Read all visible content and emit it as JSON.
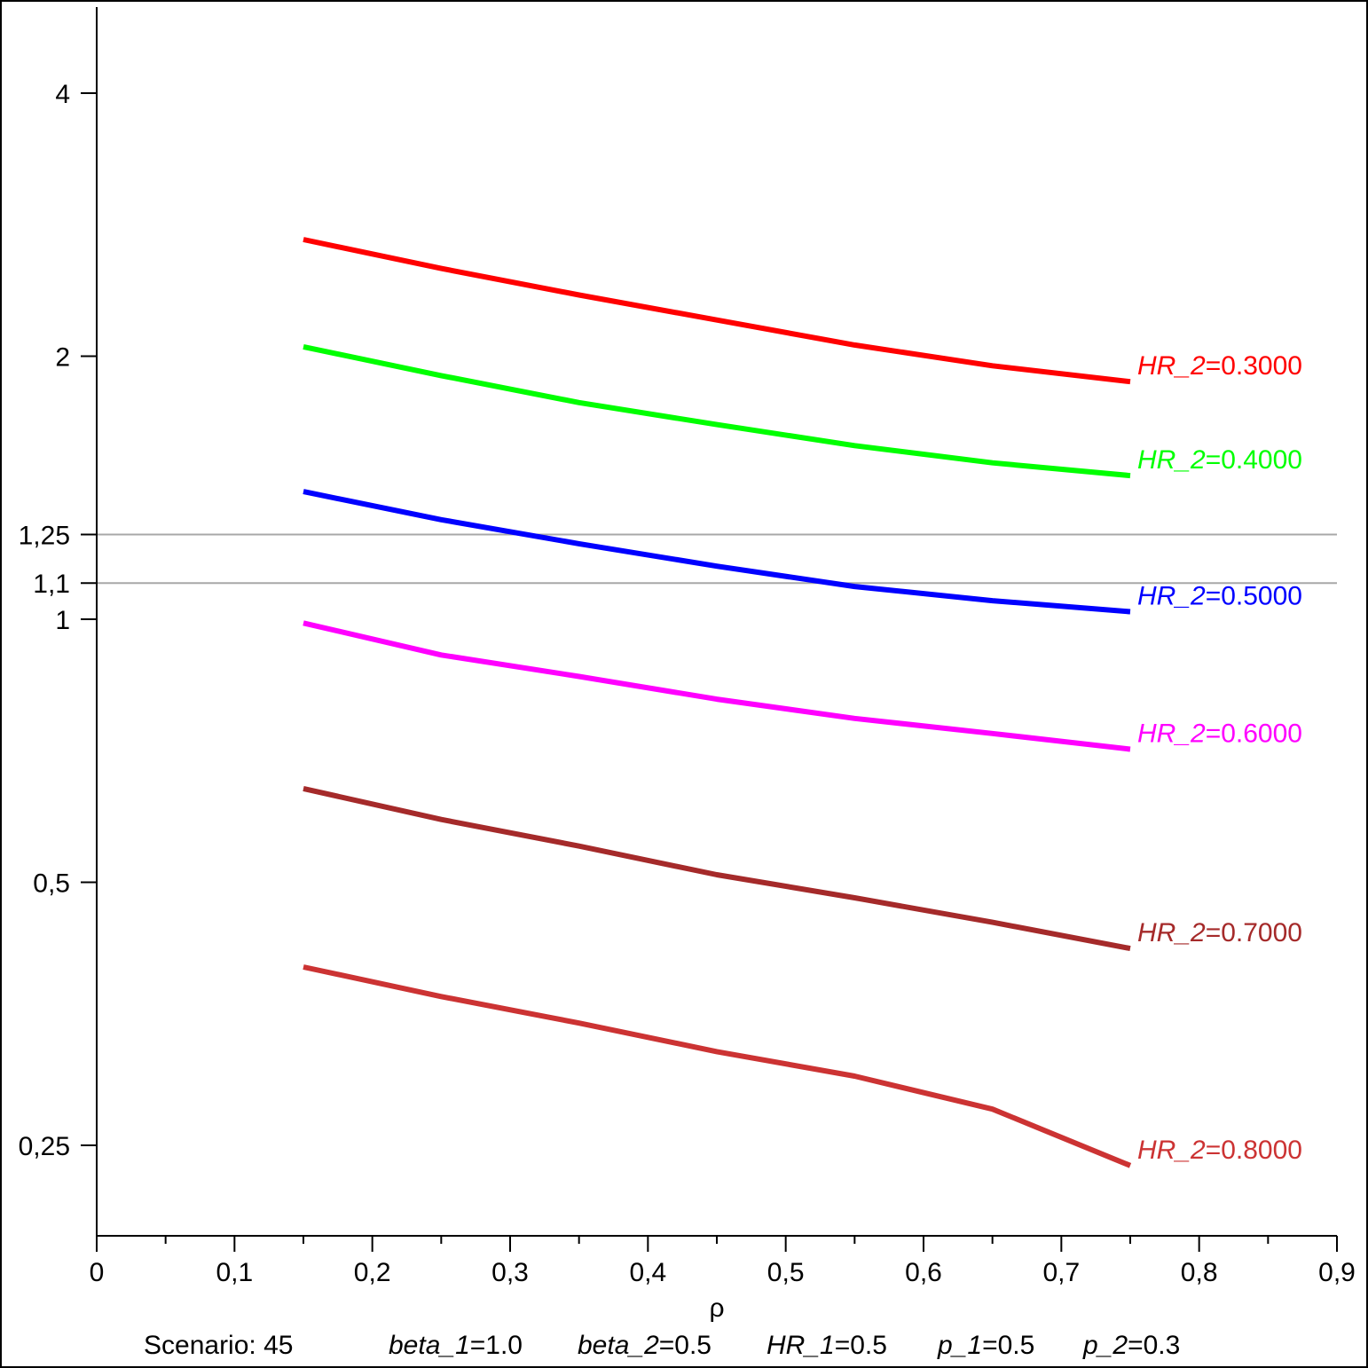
{
  "chart_data": {
    "type": "line",
    "xlabel": "ρ",
    "xlim": [
      0,
      0.9
    ],
    "ylim": [
      0.2,
      5
    ],
    "yscale": "log",
    "grid": false,
    "x_ticks": [
      {
        "v": 0,
        "label": "0"
      },
      {
        "v": 0.1,
        "label": "0,1"
      },
      {
        "v": 0.2,
        "label": "0,2"
      },
      {
        "v": 0.3,
        "label": "0,3"
      },
      {
        "v": 0.4,
        "label": "0,4"
      },
      {
        "v": 0.5,
        "label": "0,5"
      },
      {
        "v": 0.6,
        "label": "0,6"
      },
      {
        "v": 0.7,
        "label": "0,7"
      },
      {
        "v": 0.8,
        "label": "0,8"
      },
      {
        "v": 0.9,
        "label": "0,9"
      }
    ],
    "y_ticks": [
      {
        "v": 4,
        "label": "4"
      },
      {
        "v": 2,
        "label": "2"
      },
      {
        "v": 1.25,
        "label": "1,25"
      },
      {
        "v": 1.1,
        "label": "1,1"
      },
      {
        "v": 1,
        "label": "1"
      },
      {
        "v": 0.5,
        "label": "0,5"
      },
      {
        "v": 0.25,
        "label": "0,25"
      }
    ],
    "reference_lines": [
      1.25,
      1.1
    ],
    "x": [
      0.15,
      0.25,
      0.35,
      0.45,
      0.55,
      0.65,
      0.75
    ],
    "series": [
      {
        "name": "0.3000",
        "color": "#ff0000",
        "values": [
          2.72,
          2.52,
          2.35,
          2.2,
          2.06,
          1.95,
          1.87
        ]
      },
      {
        "name": "0.4000",
        "color": "#00ff00",
        "values": [
          2.05,
          1.9,
          1.77,
          1.67,
          1.58,
          1.51,
          1.46
        ]
      },
      {
        "name": "0.5000",
        "color": "#0000ff",
        "values": [
          1.4,
          1.3,
          1.22,
          1.15,
          1.09,
          1.05,
          1.02
        ]
      },
      {
        "name": "0.6000",
        "color": "#ff00ff",
        "values": [
          0.99,
          0.91,
          0.86,
          0.81,
          0.77,
          0.74,
          0.71
        ]
      },
      {
        "name": "0.7000",
        "color": "#a52a2a",
        "values": [
          0.64,
          0.59,
          0.55,
          0.51,
          0.48,
          0.45,
          0.42
        ]
      },
      {
        "name": "0.8000",
        "color": "#cc3333",
        "values": [
          0.4,
          0.37,
          0.345,
          0.32,
          0.3,
          0.275,
          0.237
        ]
      }
    ],
    "series_label_prefix": "HR_2",
    "series_label_eq": "=",
    "caption": {
      "scenario": "Scenario: 45",
      "params": [
        {
          "name": "beta_1",
          "value": "1.0"
        },
        {
          "name": "beta_2",
          "value": "0.5"
        },
        {
          "name": "HR_1",
          "value": "0.5"
        },
        {
          "name": "p_1",
          "value": "0.5"
        },
        {
          "name": "p_2",
          "value": "0.3"
        }
      ],
      "eq": "="
    }
  }
}
